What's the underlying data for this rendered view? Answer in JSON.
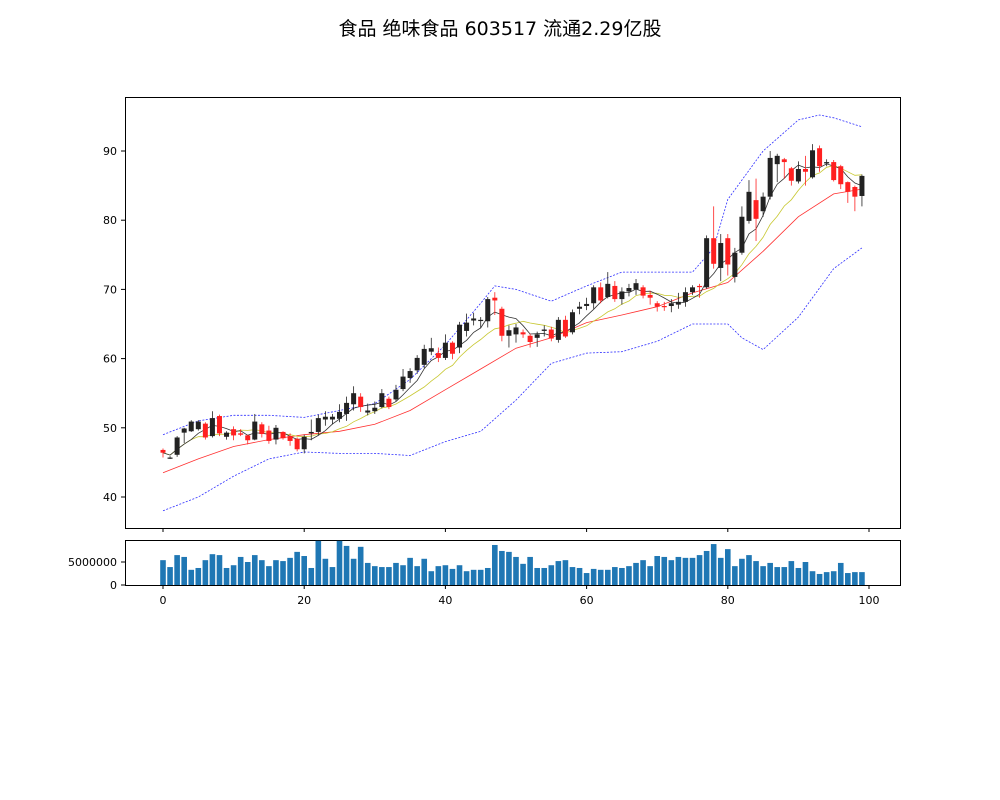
{
  "chart_data": {
    "type": "candlestick",
    "title": "食品 绝味食品 603517 流通2.29亿股",
    "x_ticks": [
      "0",
      "20",
      "40",
      "60",
      "80",
      "100"
    ],
    "price_ylim": [
      35.3,
      97.9
    ],
    "price_ticks": [
      "40",
      "50",
      "60",
      "70",
      "80",
      "90"
    ],
    "volume_ticks": [
      "0",
      "5000000"
    ],
    "volume_ylim": [
      0,
      10000000
    ],
    "colors": {
      "up": "#222222",
      "down": "#ff2020",
      "ma_short": "#333333",
      "ma_mid": "#c8c832",
      "ma_long": "#ff3030",
      "band": "#3030ff",
      "volume": "#1f77b4"
    },
    "candles_ochl_note": "[open, close, high, low]",
    "candles": [
      [
        46.8,
        46.4,
        47.0,
        45.7
      ],
      [
        45.6,
        45.7,
        45.9,
        45.5
      ],
      [
        46.1,
        48.6,
        48.8,
        45.8
      ],
      [
        49.3,
        49.9,
        50.0,
        47.8
      ],
      [
        49.5,
        50.9,
        51.1,
        49.4
      ],
      [
        49.8,
        50.9,
        51.1,
        49.6
      ],
      [
        50.6,
        48.6,
        50.8,
        48.3
      ],
      [
        48.8,
        51.4,
        52.4,
        48.6
      ],
      [
        51.7,
        49.2,
        51.9,
        48.8
      ],
      [
        48.7,
        49.3,
        49.5,
        48.3
      ],
      [
        49.8,
        48.9,
        50.2,
        48.2
      ],
      [
        49.2,
        49.0,
        49.8,
        48.8
      ],
      [
        48.9,
        48.2,
        49.0,
        47.6
      ],
      [
        48.3,
        50.9,
        52.0,
        48.2
      ],
      [
        50.5,
        49.1,
        50.8,
        48.6
      ],
      [
        49.6,
        48.1,
        50.3,
        47.7
      ],
      [
        48.3,
        50.0,
        50.4,
        47.6
      ],
      [
        49.4,
        48.5,
        49.5,
        48.3
      ],
      [
        48.8,
        48.1,
        49.2,
        47.4
      ],
      [
        48.4,
        46.9,
        48.6,
        46.6
      ],
      [
        46.9,
        48.7,
        49.0,
        46.3
      ],
      [
        49.2,
        49.4,
        51.2,
        48.2
      ],
      [
        49.4,
        51.4,
        51.9,
        48.9
      ],
      [
        51.2,
        51.6,
        52.4,
        50.3
      ],
      [
        51.2,
        51.6,
        52.0,
        50.5
      ],
      [
        51.3,
        52.3,
        53.4,
        50.8
      ],
      [
        52.0,
        53.6,
        54.5,
        51.0
      ],
      [
        53.4,
        55.0,
        56.0,
        52.5
      ],
      [
        54.5,
        53.0,
        55.0,
        52.3
      ],
      [
        52.2,
        52.5,
        53.5,
        51.8
      ],
      [
        52.4,
        52.9,
        53.8,
        52.0
      ],
      [
        53.0,
        55.0,
        55.6,
        52.8
      ],
      [
        54.2,
        53.0,
        54.5,
        52.7
      ],
      [
        54.1,
        55.5,
        56.2,
        53.8
      ],
      [
        55.6,
        57.4,
        58.5,
        55.3
      ],
      [
        57.2,
        58.2,
        58.6,
        56.5
      ],
      [
        58.3,
        60.1,
        60.5,
        57.8
      ],
      [
        59.1,
        61.4,
        62.0,
        58.6
      ],
      [
        61.0,
        61.5,
        63.0,
        60.5
      ],
      [
        60.8,
        60.1,
        61.6,
        59.5
      ],
      [
        60.1,
        62.3,
        63.5,
        59.8
      ],
      [
        62.3,
        60.7,
        62.5,
        59.9
      ],
      [
        61.6,
        64.9,
        65.3,
        60.8
      ],
      [
        64.0,
        65.2,
        66.5,
        63.2
      ],
      [
        65.5,
        65.8,
        66.6,
        64.8
      ],
      [
        65.6,
        65.6,
        66.0,
        64.4
      ],
      [
        65.4,
        68.6,
        68.9,
        64.5
      ],
      [
        68.8,
        68.4,
        69.6,
        66.3
      ],
      [
        67.2,
        63.3,
        67.5,
        62.5
      ],
      [
        63.3,
        64.1,
        64.8,
        61.6
      ],
      [
        63.5,
        64.5,
        65.0,
        62.3
      ],
      [
        63.8,
        63.5,
        64.2,
        63.0
      ],
      [
        63.3,
        62.4,
        63.6,
        61.6
      ],
      [
        63.0,
        63.5,
        63.9,
        61.7
      ],
      [
        64.0,
        64.2,
        64.8,
        63.2
      ],
      [
        64.2,
        62.9,
        64.6,
        62.5
      ],
      [
        62.7,
        65.6,
        66.0,
        62.3
      ],
      [
        65.6,
        63.2,
        66.2,
        63.0
      ],
      [
        63.8,
        66.7,
        67.1,
        63.5
      ],
      [
        67.2,
        67.5,
        68.2,
        66.4
      ],
      [
        67.6,
        67.9,
        68.8,
        67.0
      ],
      [
        68.0,
        70.3,
        70.6,
        67.2
      ],
      [
        70.3,
        68.4,
        71.0,
        68.0
      ],
      [
        68.9,
        70.8,
        72.5,
        68.7
      ],
      [
        70.5,
        68.6,
        71.2,
        68.2
      ],
      [
        68.6,
        69.7,
        70.3,
        67.8
      ],
      [
        69.7,
        70.2,
        70.8,
        69.0
      ],
      [
        70.0,
        70.9,
        71.5,
        69.2
      ],
      [
        70.3,
        69.1,
        70.6,
        68.7
      ],
      [
        69.2,
        68.8,
        69.8,
        67.8
      ],
      [
        68.0,
        67.5,
        68.3,
        66.8
      ],
      [
        67.6,
        67.5,
        68.2,
        66.9
      ],
      [
        67.6,
        68.0,
        68.6,
        66.7
      ],
      [
        67.8,
        68.2,
        69.5,
        67.2
      ],
      [
        68.2,
        69.6,
        70.3,
        67.5
      ],
      [
        69.6,
        70.3,
        70.6,
        69.2
      ],
      [
        70.5,
        70.4,
        70.8,
        68.8
      ],
      [
        70.3,
        77.4,
        77.8,
        70.1
      ],
      [
        77.4,
        73.7,
        82.0,
        73.0
      ],
      [
        73.1,
        76.7,
        78.0,
        71.2
      ],
      [
        77.4,
        73.6,
        78.0,
        72.0
      ],
      [
        71.8,
        75.3,
        76.0,
        71.0
      ],
      [
        75.3,
        80.5,
        82.0,
        75.0
      ],
      [
        79.9,
        84.1,
        85.8,
        79.5
      ],
      [
        82.9,
        80.2,
        86.0,
        77.0
      ],
      [
        81.3,
        83.4,
        84.0,
        80.5
      ],
      [
        83.4,
        89.0,
        90.0,
        83.0
      ],
      [
        88.1,
        89.3,
        89.6,
        85.5
      ],
      [
        88.8,
        88.4,
        89.0,
        86.0
      ],
      [
        87.5,
        85.7,
        87.7,
        85.0
      ],
      [
        85.6,
        87.4,
        88.5,
        85.3
      ],
      [
        87.4,
        87.0,
        89.3,
        85.0
      ],
      [
        86.2,
        90.1,
        91.0,
        86.0
      ],
      [
        90.4,
        87.8,
        90.8,
        87.0
      ],
      [
        88.2,
        88.4,
        88.8,
        87.8
      ],
      [
        88.4,
        85.8,
        88.7,
        85.6
      ],
      [
        87.8,
        85.2,
        88.0,
        84.5
      ],
      [
        85.5,
        84.1,
        85.6,
        82.5
      ],
      [
        84.8,
        83.4,
        85.0,
        81.3
      ],
      [
        83.5,
        86.4,
        86.6,
        82.0
      ]
    ],
    "ma_long": {
      "x": [
        0,
        5,
        10,
        15,
        20,
        25,
        30,
        35,
        40,
        45,
        50,
        55,
        60,
        65,
        70,
        75,
        80,
        85,
        90,
        95,
        99
      ],
      "y": [
        43.5,
        45.5,
        47.3,
        48.3,
        49,
        49.5,
        50.5,
        52.5,
        55.5,
        58.5,
        61.5,
        63,
        65.2,
        66.3,
        67.5,
        69.5,
        71,
        75.5,
        80.5,
        83.8,
        84.5
      ]
    },
    "band_upper": {
      "x": [
        0,
        5,
        10,
        15,
        20,
        25,
        30,
        35,
        40,
        45,
        47,
        50,
        55,
        60,
        65,
        70,
        75,
        78,
        80,
        85,
        90,
        93,
        95,
        99
      ],
      "y": [
        49,
        51,
        51.8,
        51.8,
        51.5,
        52.5,
        53.5,
        57,
        62,
        68,
        70.5,
        70,
        68.3,
        70.5,
        72.5,
        72.5,
        72.5,
        76,
        83,
        90,
        94.5,
        95.2,
        94.8,
        93.5
      ]
    },
    "band_lower": {
      "x": [
        0,
        5,
        10,
        15,
        20,
        25,
        30,
        35,
        40,
        45,
        50,
        55,
        60,
        65,
        70,
        75,
        80,
        82,
        85,
        90,
        95,
        99
      ],
      "y": [
        38,
        40,
        43,
        45.5,
        46.5,
        46.3,
        46.3,
        46,
        48,
        49.5,
        54,
        59.3,
        60.8,
        61,
        62.5,
        65,
        65,
        63,
        61.3,
        66,
        73,
        76
      ]
    },
    "volume": [
      5400000,
      3900000,
      6500000,
      6100000,
      3300000,
      3700000,
      5400000,
      6700000,
      6500000,
      3700000,
      4300000,
      6100000,
      5000000,
      6500000,
      5400000,
      4100000,
      5400000,
      5200000,
      5900000,
      7200000,
      6300000,
      3700000,
      9600000,
      5700000,
      3900000,
      9600000,
      8500000,
      5700000,
      8300000,
      4800000,
      4100000,
      3900000,
      3900000,
      4800000,
      4300000,
      5900000,
      4100000,
      5700000,
      3000000,
      4100000,
      4300000,
      3500000,
      4300000,
      3000000,
      3300000,
      3300000,
      3700000,
      8700000,
      7400000,
      7200000,
      6100000,
      4600000,
      6100000,
      3700000,
      3700000,
      4300000,
      5200000,
      5400000,
      3900000,
      3700000,
      2600000,
      3500000,
      3300000,
      3300000,
      3900000,
      3700000,
      4100000,
      4800000,
      5400000,
      4100000,
      6300000,
      6100000,
      5400000,
      6100000,
      5900000,
      5900000,
      6500000,
      7400000,
      8900000,
      5900000,
      7800000,
      4100000,
      5700000,
      6500000,
      5200000,
      4100000,
      4800000,
      3900000,
      3900000,
      5200000,
      3700000,
      5000000,
      3000000,
      2400000,
      2800000,
      3000000,
      4800000,
      2600000,
      2800000,
      2800000
    ]
  }
}
